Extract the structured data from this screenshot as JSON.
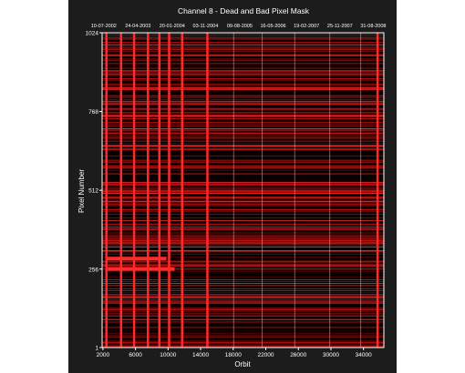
{
  "chart_data": {
    "type": "heatmap",
    "title": "Channel 8 - Dead and Bad Pixel Mask",
    "xlabel": "Orbit",
    "ylabel": "Pixel Number",
    "xlim": [
      1900,
      36500
    ],
    "ylim": [
      1,
      1024
    ],
    "x_ticks": [
      2000,
      6000,
      10000,
      14000,
      18000,
      22000,
      26000,
      30000,
      34000
    ],
    "y_ticks": [
      1,
      256,
      512,
      768,
      1024
    ],
    "top_axis_dates": [
      {
        "orbit": 2100,
        "label": "10-07-2002"
      },
      {
        "orbit": 6300,
        "label": "24-04-2003"
      },
      {
        "orbit": 10500,
        "label": "20-01-2004"
      },
      {
        "orbit": 14600,
        "label": "03-11-2004"
      },
      {
        "orbit": 18800,
        "label": "09-08-2005"
      },
      {
        "orbit": 22900,
        "label": "16-05-2006"
      },
      {
        "orbit": 27000,
        "label": "19-02-2007"
      },
      {
        "orbit": 31100,
        "label": "25-11-2007"
      },
      {
        "orbit": 35200,
        "label": "31-08-2008"
      }
    ],
    "vertical_bad_orbits": [
      2400,
      4200,
      5800,
      7500,
      8900,
      10100,
      11700,
      14800,
      35700
    ],
    "faint_vertical_orbits": [
      18000,
      21500,
      25500,
      29800,
      33600
    ],
    "bright_row_segments": [
      {
        "pixel": 256,
        "orbit_start": 2300,
        "orbit_end": 10800
      },
      {
        "pixel": 290,
        "orbit_start": 2400,
        "orbit_end": 9800
      }
    ],
    "colors": {
      "background_page": "#ffffff",
      "frame": "#1c1c1c",
      "plot_dark": "#0a0000",
      "mask_red": "#d41010",
      "bright_red": "#ff2a2a",
      "faint_line": "#e8a0a0",
      "text": "#ffffff"
    },
    "grid": false,
    "legend": "none"
  }
}
